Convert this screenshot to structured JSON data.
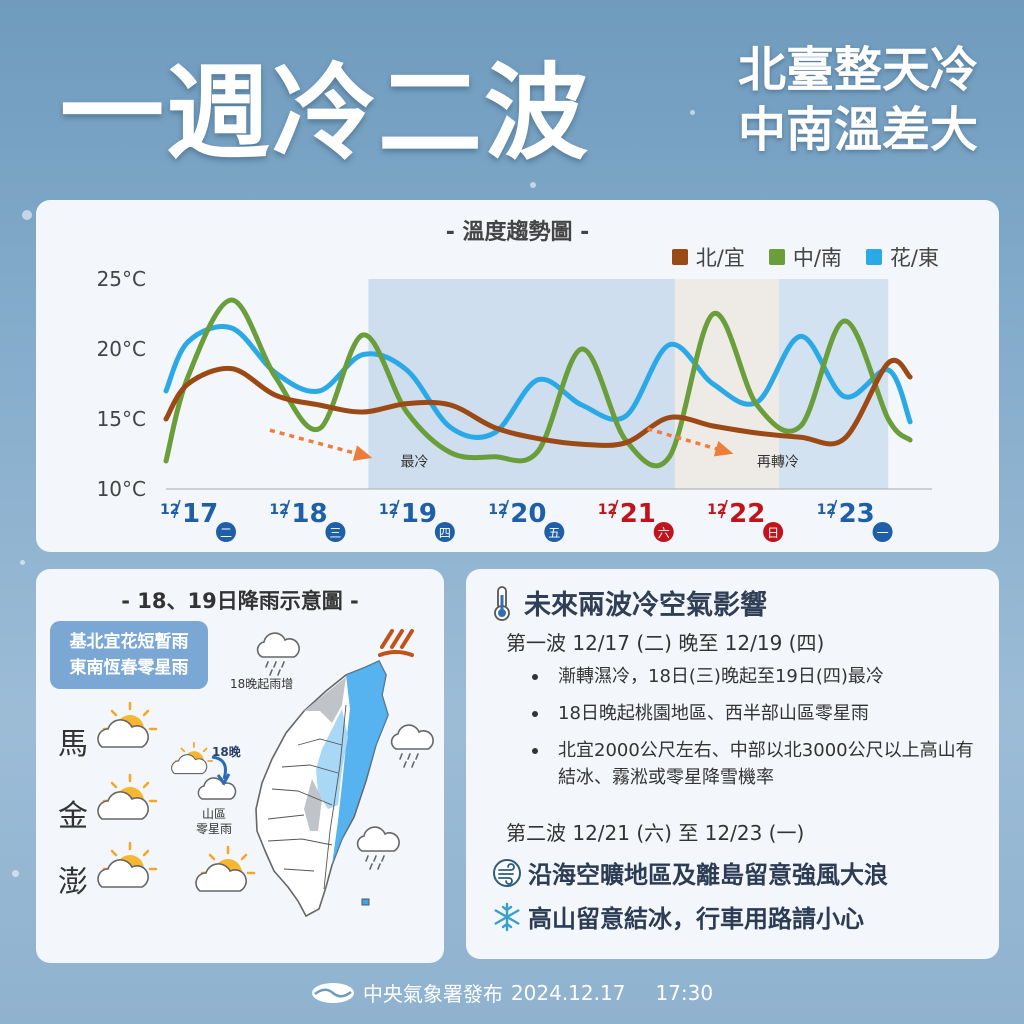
{
  "header": {
    "title": "一週冷二波",
    "subtitle_line1": "北臺整天冷",
    "subtitle_line2": "中南溫差大"
  },
  "chart_data": {
    "type": "line",
    "title": "- 溫度趨勢圖 -",
    "ylabels": [
      "25°C",
      "20°C",
      "15°C",
      "10°C"
    ],
    "ylim": [
      10,
      25
    ],
    "xlim": [
      12.17,
      12.24
    ],
    "dates": [
      {
        "month": "12",
        "day": "17",
        "weekday": "二",
        "weekend": false
      },
      {
        "month": "12",
        "day": "18",
        "weekday": "三",
        "weekend": false
      },
      {
        "month": "12",
        "day": "19",
        "weekday": "四",
        "weekend": false
      },
      {
        "month": "12",
        "day": "20",
        "weekday": "五",
        "weekend": false
      },
      {
        "month": "12",
        "day": "21",
        "weekday": "六",
        "weekend": true
      },
      {
        "month": "12",
        "day": "22",
        "weekday": "日",
        "weekend": true
      },
      {
        "month": "12",
        "day": "23",
        "weekday": "一",
        "weekend": false
      }
    ],
    "date_x": [
      12.17,
      12.18,
      12.19,
      12.2,
      12.21,
      12.22,
      12.23
    ],
    "series": [
      {
        "name": "北/宜",
        "color": "#9b4a16",
        "x": [
          12.17,
          12.172,
          12.176,
          12.18,
          12.184,
          12.188,
          12.192,
          12.196,
          12.2,
          12.204,
          12.208,
          12.212,
          12.216,
          12.22,
          12.224,
          12.228,
          12.232,
          12.236,
          12.238
        ],
        "y": [
          15.0,
          17.5,
          18.6,
          16.7,
          16.0,
          15.5,
          16.1,
          16.0,
          14.4,
          13.6,
          13.2,
          13.3,
          15.1,
          14.5,
          14.0,
          13.7,
          13.6,
          19.0,
          18.0
        ]
      },
      {
        "name": "中/南",
        "color": "#6a9e3a",
        "x": [
          12.17,
          12.172,
          12.176,
          12.18,
          12.184,
          12.188,
          12.192,
          12.196,
          12.2,
          12.204,
          12.208,
          12.212,
          12.216,
          12.22,
          12.224,
          12.228,
          12.232,
          12.236,
          12.238
        ],
        "y": [
          12.0,
          18.0,
          23.5,
          18.0,
          14.3,
          21.0,
          15.5,
          12.6,
          12.3,
          12.7,
          20.0,
          13.5,
          12.3,
          22.5,
          16.0,
          14.5,
          22.0,
          15.0,
          13.5
        ]
      },
      {
        "name": "花/東",
        "color": "#2aa9e6",
        "x": [
          12.17,
          12.172,
          12.176,
          12.18,
          12.184,
          12.188,
          12.192,
          12.196,
          12.2,
          12.204,
          12.208,
          12.212,
          12.216,
          12.22,
          12.224,
          12.228,
          12.232,
          12.236,
          12.238
        ],
        "y": [
          17.0,
          20.5,
          21.5,
          18.3,
          17.0,
          19.6,
          18.5,
          14.4,
          14.0,
          17.8,
          16.0,
          15.2,
          20.3,
          17.5,
          16.2,
          20.9,
          16.6,
          18.5,
          14.8
        ]
      }
    ],
    "annotations": [
      {
        "text": "最冷"
      },
      {
        "text": "再轉冷"
      }
    ]
  },
  "rain": {
    "title": "- 18、19日降雨示意圖 -",
    "callout_line1": "基北宜花短暫雨",
    "callout_line2": "東南恆春零星雨",
    "islands": [
      "馬",
      "金",
      "澎"
    ],
    "note_rain_increase": "18晚起雨增",
    "note_18_evening": "18晚",
    "note_mountain_line1": "山區",
    "note_mountain_line2": "零星雨"
  },
  "info": {
    "title": "未來兩波冷空氣影響",
    "wave1": "第一波  12/17 (二) 晚至 12/19 (四)",
    "bullets": [
      "漸轉濕冷，18日(三)晚起至19日(四)最冷",
      "18日晚起桃園地區、西半部山區零星雨",
      "北宜2000公尺左右、中部以北3000公尺以上高山有結冰、霧淞或零星降雪機率"
    ],
    "wave2": "第二波  12/21 (六) 至 12/23 (一)",
    "alert1": "沿海空曠地區及離島留意強風大浪",
    "alert2": "高山留意結冰，行車用路請小心"
  },
  "footer": {
    "publisher": "中央氣象署發布",
    "date": "2024.12.17",
    "time": "17:30"
  },
  "icons": [
    "thermometer-icon",
    "wind-icon",
    "snowflake-icon",
    "cloud-sun-icon",
    "rain-cloud-icon",
    "cwa-logo-icon"
  ]
}
